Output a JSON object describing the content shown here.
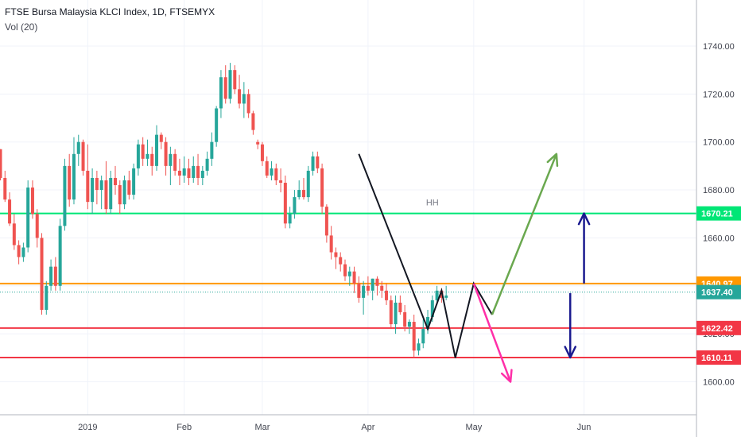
{
  "header": {
    "title": "FTSE Bursa Malaysia KLCI Index, 1D, FTSEMYX",
    "indicator": "Vol (20)"
  },
  "chart_data": {
    "type": "candlestick",
    "ylim": [
      1585,
      1765
    ],
    "y_ticks": [
      1600,
      1620,
      1640,
      1660,
      1680,
      1700,
      1720,
      1740
    ],
    "y_tick_labels": [
      "1600.00",
      "1620.00",
      "1640.00",
      "1660.00",
      "1680.00",
      "1700.00",
      "1720.00",
      "1740.00"
    ],
    "x_tick_labels": [
      {
        "i": 19,
        "label": "2019"
      },
      {
        "i": 40,
        "label": "Feb"
      },
      {
        "i": 57,
        "label": "Mar"
      },
      {
        "i": 80,
        "label": "Apr"
      },
      {
        "i": 103,
        "label": "May"
      },
      {
        "i": 127,
        "label": "Jun"
      }
    ],
    "colors": {
      "up": "#26a69a",
      "down": "#ef5350"
    },
    "candles": [
      [
        1697,
        1697,
        1684,
        1685
      ],
      [
        1685,
        1688,
        1675,
        1676
      ],
      [
        1676,
        1679,
        1665,
        1666
      ],
      [
        1666,
        1670,
        1655,
        1657
      ],
      [
        1657,
        1659,
        1649,
        1652
      ],
      [
        1652,
        1658,
        1650,
        1656
      ],
      [
        1656,
        1684,
        1654,
        1681
      ],
      [
        1681,
        1684,
        1668,
        1670
      ],
      [
        1670,
        1672,
        1656,
        1660
      ],
      [
        1660,
        1662,
        1628,
        1630
      ],
      [
        1630,
        1642,
        1628,
        1640
      ],
      [
        1640,
        1651,
        1638,
        1648
      ],
      [
        1648,
        1652,
        1638,
        1640
      ],
      [
        1640,
        1668,
        1638,
        1665
      ],
      [
        1665,
        1693,
        1663,
        1690
      ],
      [
        1690,
        1695,
        1673,
        1676
      ],
      [
        1676,
        1702,
        1674,
        1695
      ],
      [
        1695,
        1703,
        1690,
        1700
      ],
      [
        1700,
        1701,
        1686,
        1688
      ],
      [
        1688,
        1699,
        1672,
        1675
      ],
      [
        1675,
        1689,
        1670,
        1685
      ],
      [
        1685,
        1688,
        1674,
        1680
      ],
      [
        1680,
        1686,
        1672,
        1684
      ],
      [
        1684,
        1692,
        1670,
        1672
      ],
      [
        1672,
        1688,
        1670,
        1685
      ],
      [
        1685,
        1690,
        1678,
        1682
      ],
      [
        1682,
        1684,
        1670,
        1674
      ],
      [
        1674,
        1686,
        1672,
        1684
      ],
      [
        1684,
        1688,
        1676,
        1678
      ],
      [
        1678,
        1691,
        1676,
        1689
      ],
      [
        1689,
        1701,
        1686,
        1699
      ],
      [
        1699,
        1702,
        1690,
        1693
      ],
      [
        1693,
        1701,
        1690,
        1695
      ],
      [
        1695,
        1698,
        1686,
        1690
      ],
      [
        1690,
        1707,
        1688,
        1703
      ],
      [
        1703,
        1704,
        1697,
        1700
      ],
      [
        1700,
        1702,
        1686,
        1690
      ],
      [
        1690,
        1698,
        1682,
        1695
      ],
      [
        1695,
        1697,
        1686,
        1688
      ],
      [
        1688,
        1693,
        1682,
        1686
      ],
      [
        1686,
        1694,
        1683,
        1689
      ],
      [
        1689,
        1693,
        1682,
        1685
      ],
      [
        1685,
        1694,
        1683,
        1690
      ],
      [
        1690,
        1695,
        1682,
        1685
      ],
      [
        1685,
        1690,
        1682,
        1688
      ],
      [
        1688,
        1696,
        1686,
        1693
      ],
      [
        1693,
        1704,
        1690,
        1700
      ],
      [
        1700,
        1715,
        1698,
        1714
      ],
      [
        1714,
        1730,
        1710,
        1727
      ],
      [
        1727,
        1732,
        1716,
        1718
      ],
      [
        1718,
        1733,
        1716,
        1730
      ],
      [
        1730,
        1732,
        1720,
        1722
      ],
      [
        1722,
        1728,
        1714,
        1716
      ],
      [
        1716,
        1725,
        1710,
        1720
      ],
      [
        1720,
        1722,
        1710,
        1712
      ],
      [
        1712,
        1713,
        1703,
        1705
      ],
      [
        1700,
        1701,
        1697,
        1699
      ],
      [
        1699,
        1700,
        1690,
        1692
      ],
      [
        1692,
        1694,
        1685,
        1686
      ],
      [
        1686,
        1692,
        1684,
        1689
      ],
      [
        1689,
        1691,
        1682,
        1684
      ],
      [
        1684,
        1689,
        1679,
        1683
      ],
      [
        1683,
        1686,
        1664,
        1666
      ],
      [
        1666,
        1673,
        1664,
        1670
      ],
      [
        1670,
        1680,
        1668,
        1677
      ],
      [
        1677,
        1684,
        1676,
        1680
      ],
      [
        1680,
        1685,
        1676,
        1677
      ],
      [
        1677,
        1690,
        1675,
        1688
      ],
      [
        1688,
        1696,
        1686,
        1694
      ],
      [
        1694,
        1696,
        1687,
        1689
      ],
      [
        1689,
        1691,
        1670,
        1673
      ],
      [
        1673,
        1674,
        1658,
        1661
      ],
      [
        1661,
        1665,
        1651,
        1654
      ],
      [
        1654,
        1656,
        1647,
        1652
      ],
      [
        1652,
        1654,
        1646,
        1649
      ],
      [
        1649,
        1651,
        1642,
        1644
      ],
      [
        1644,
        1648,
        1640,
        1646
      ],
      [
        1646,
        1648,
        1637,
        1641
      ],
      [
        1641,
        1644,
        1633,
        1635
      ],
      [
        1635,
        1642,
        1628,
        1640
      ],
      [
        1640,
        1644,
        1636,
        1638
      ],
      [
        1638,
        1643,
        1634,
        1643
      ],
      [
        1643,
        1644,
        1636,
        1640
      ],
      [
        1640,
        1642,
        1635,
        1638
      ],
      [
        1638,
        1641,
        1632,
        1634
      ],
      [
        1634,
        1636,
        1622,
        1624
      ],
      [
        1624,
        1636,
        1620,
        1633
      ],
      [
        1633,
        1636,
        1628,
        1629
      ],
      [
        1629,
        1632,
        1621,
        1623
      ],
      [
        1623,
        1626,
        1620,
        1625
      ],
      [
        1625,
        1628,
        1610,
        1613
      ],
      [
        1613,
        1618,
        1611,
        1616
      ],
      [
        1616,
        1626,
        1614,
        1622
      ],
      [
        1622,
        1630,
        1620,
        1627
      ],
      [
        1627,
        1636,
        1625,
        1634
      ],
      [
        1634,
        1640,
        1632,
        1638
      ],
      [
        1638,
        1639,
        1633,
        1635
      ],
      [
        1635,
        1640,
        1634,
        1636
      ]
    ],
    "h_lines": [
      {
        "value": 1670.21,
        "label": "1670.21",
        "color": "#00e676"
      },
      {
        "value": 1640.97,
        "label": "1640.97",
        "color": "#ff9800"
      },
      {
        "value": 1637.4,
        "label": "1637.40",
        "color": "#26a69a",
        "dotted": true
      },
      {
        "value": 1622.42,
        "label": "1622.42",
        "color": "#f23645"
      },
      {
        "value": 1610.11,
        "label": "1610.11",
        "color": "#f23645"
      }
    ],
    "annotations": [
      {
        "type": "text",
        "text": "HH",
        "i": 94,
        "value": 1671.5,
        "color": "#787b86"
      }
    ],
    "zigzag": [
      [
        78,
        1695
      ],
      [
        93,
        1622
      ],
      [
        96,
        1638
      ],
      [
        99,
        1610
      ],
      [
        103,
        1641
      ],
      [
        107,
        1628
      ]
    ],
    "arrows": [
      {
        "from": [
          107,
          1628
        ],
        "to": [
          121,
          1695
        ],
        "color": "#6aa84f"
      },
      {
        "from": [
          103,
          1641
        ],
        "to": [
          111,
          1600
        ],
        "color": "#ff2fa8"
      }
    ],
    "measure": [
      {
        "i": 127,
        "from": 1641,
        "to": 1670.21,
        "color": "#1a1a8f"
      },
      {
        "i": 124,
        "from": 1637,
        "to": 1610.11,
        "color": "#1a1a8f"
      }
    ]
  }
}
